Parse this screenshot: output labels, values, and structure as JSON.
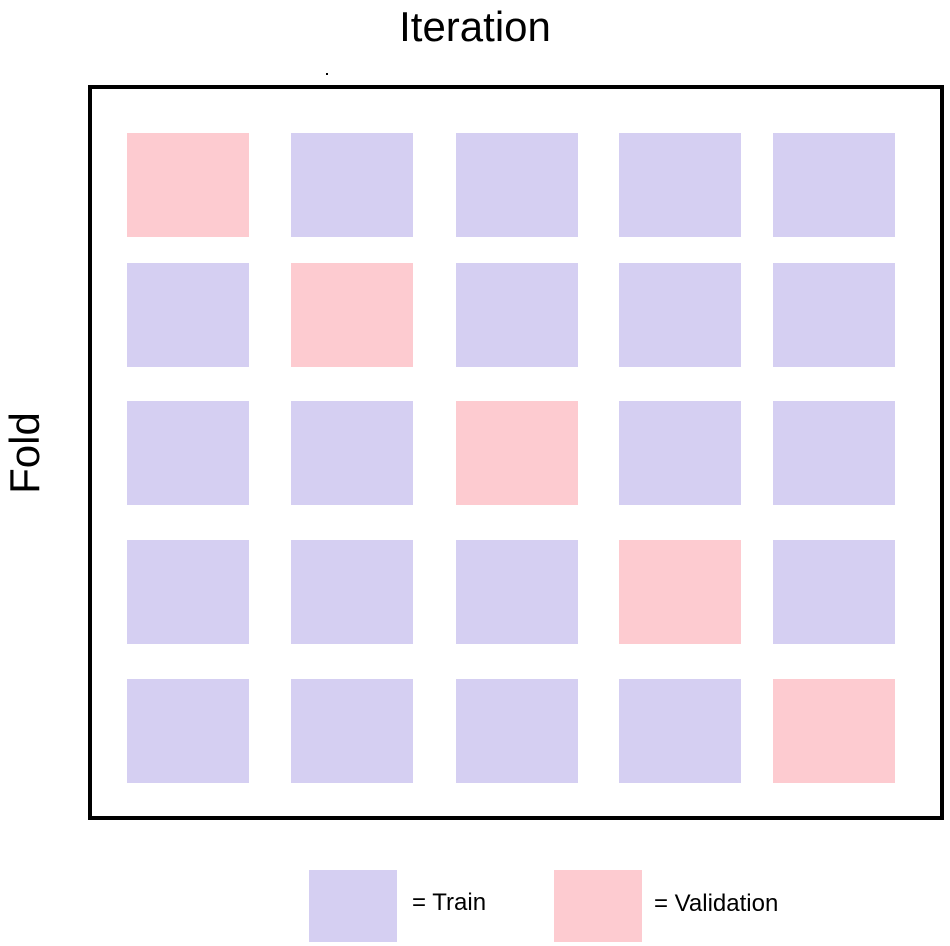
{
  "title": "Iteration",
  "y_label": "Fold",
  "colors": {
    "train": "#d5cff2",
    "validation": "#fdcbd0"
  },
  "grid": {
    "rows": 5,
    "cols": 5,
    "cells": [
      [
        "validation",
        "train",
        "train",
        "train",
        "train"
      ],
      [
        "train",
        "validation",
        "train",
        "train",
        "train"
      ],
      [
        "train",
        "train",
        "validation",
        "train",
        "train"
      ],
      [
        "train",
        "train",
        "train",
        "validation",
        "train"
      ],
      [
        "train",
        "train",
        "train",
        "train",
        "validation"
      ]
    ]
  },
  "legend": {
    "train_label": "= Train",
    "validation_label": "= Validation"
  }
}
